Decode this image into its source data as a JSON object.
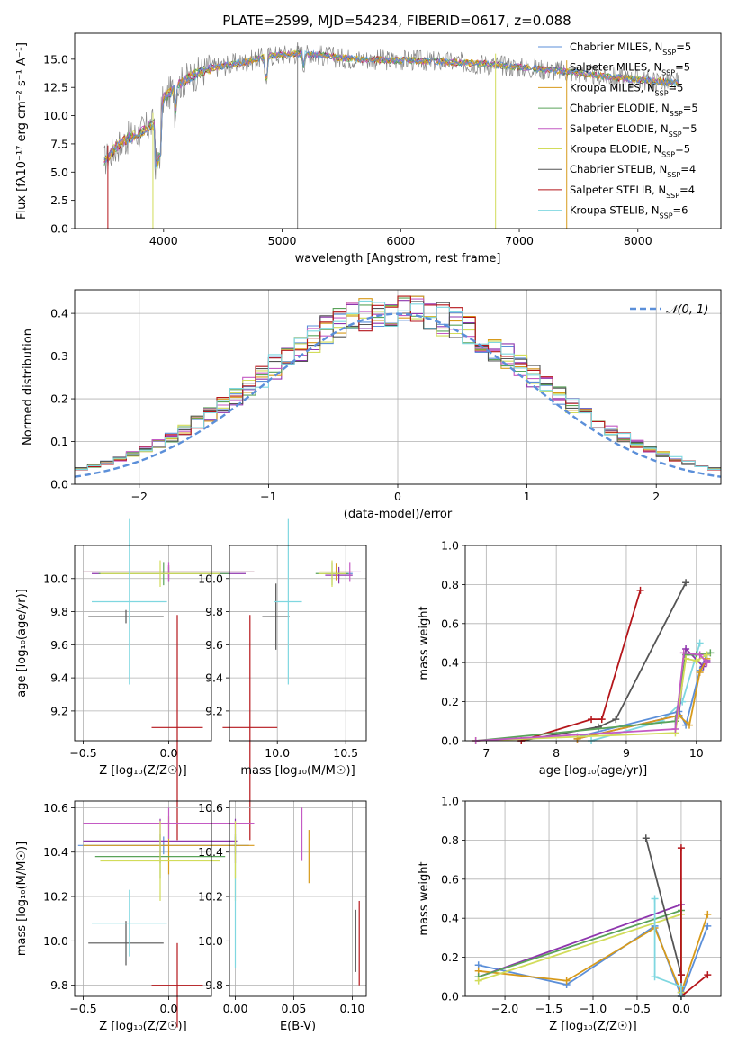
{
  "figure_title": "PLATE=2599, MJD=54234, FIBERID=0617, z=0.088",
  "colors": {
    "chabrier_miles": "#5b8fd9",
    "salpeter_miles": "#8e35ad",
    "kroupa_miles": "#d79a1b",
    "chabrier_elodie": "#5aa35a",
    "salpeter_elodie": "#c45ac4",
    "kroupa_elodie": "#d2dc5a",
    "chabrier_stelib": "#555555",
    "salpeter_stelib": "#b5161b",
    "kroupa_stelib": "#7fd7e0",
    "gaussian": "#5b8fd9",
    "data_spectrum": "#808080"
  },
  "chart_data": [
    {
      "id": "spectrum",
      "type": "line",
      "title": "PLATE=2599, MJD=54234, FIBERID=0617, z=0.088",
      "xlabel": "wavelength [Angstrom, rest frame]",
      "ylabel": "Flux [fλ10⁻¹⁷ erg cm⁻² s⁻¹ A⁻¹]",
      "xlim": [
        3250,
        8700
      ],
      "ylim": [
        0,
        17.3
      ],
      "xticks": [
        4000,
        5000,
        6000,
        7000,
        8000
      ],
      "yticks": [
        0.0,
        2.5,
        5.0,
        7.5,
        10.0,
        12.5,
        15.0
      ],
      "legend_position": "right",
      "legend": [
        {
          "label": "Chabrier MILES, N_SSP=5",
          "color_key": "chabrier_miles"
        },
        {
          "label": "Salpeter MILES, N_SSP=5",
          "color_key": "salpeter_miles"
        },
        {
          "label": "Kroupa MILES, N_SSP=5",
          "color_key": "kroupa_miles"
        },
        {
          "label": "Chabrier ELODIE, N_SSP=5",
          "color_key": "chabrier_elodie"
        },
        {
          "label": "Salpeter ELODIE, N_SSP=5",
          "color_key": "salpeter_elodie"
        },
        {
          "label": "Kroupa ELODIE, N_SSP=5",
          "color_key": "kroupa_elodie"
        },
        {
          "label": "Chabrier STELIB, N_SSP=4",
          "color_key": "chabrier_stelib"
        },
        {
          "label": "Salpeter STELIB, N_SSP=4",
          "color_key": "salpeter_stelib"
        },
        {
          "label": "Kroupa STELIB, N_SSP=6",
          "color_key": "kroupa_stelib"
        }
      ],
      "continuum": {
        "x": [
          3500,
          3600,
          3700,
          3800,
          3900,
          3950,
          4000,
          4100,
          4200,
          4300,
          4400,
          4500,
          4700,
          4900,
          5100,
          5300,
          5500,
          5700,
          5900,
          6100,
          6300,
          6500,
          6700,
          6900,
          7100,
          7300,
          7500,
          7700,
          7900,
          8100,
          8300
        ],
        "y": [
          6.0,
          7.2,
          8.0,
          8.5,
          9.2,
          9.3,
          11.5,
          12.5,
          13.3,
          13.8,
          14.2,
          14.4,
          14.8,
          15.3,
          15.5,
          15.4,
          15.1,
          15.0,
          14.9,
          14.9,
          14.8,
          14.7,
          14.6,
          14.4,
          14.2,
          14.0,
          13.8,
          13.5,
          13.3,
          13.1,
          12.9
        ]
      },
      "spikes_down": [
        {
          "x": 3530,
          "y": 0.0,
          "color_key": "salpeter_stelib"
        },
        {
          "x": 3910,
          "y": 0.0,
          "color_key": "kroupa_elodie"
        },
        {
          "x": 5130,
          "y": 0.0,
          "color_key": "data_spectrum"
        },
        {
          "x": 6800,
          "y": 0.0,
          "color_key": "kroupa_elodie"
        },
        {
          "x": 7400,
          "y": 0.0,
          "color_key": "kroupa_miles"
        }
      ]
    },
    {
      "id": "residuals",
      "type": "bar",
      "xlabel": "(data-model)/error",
      "ylabel": "Normed distribution",
      "xlim": [
        -2.5,
        2.5
      ],
      "ylim": [
        0,
        0.455
      ],
      "xticks": [
        -2,
        -1,
        0,
        1,
        2
      ],
      "yticks": [
        0.0,
        0.1,
        0.2,
        0.3,
        0.4
      ],
      "grid": true,
      "bin_width": 0.1,
      "legend_position": "top-right",
      "legend": [
        {
          "label": "𝒩(0, 1)",
          "color_key": "gaussian"
        }
      ],
      "gaussian": {
        "mean": 0,
        "sigma": 1,
        "style": "dashed"
      }
    },
    {
      "id": "age_vs_Z",
      "type": "scatter",
      "xlabel": "Z [log₁₀(Z/Z☉)]",
      "ylabel": "age  [log₁₀(age/yr)]",
      "xlim": [
        -0.55,
        0.25
      ],
      "ylim": [
        9.02,
        10.2
      ],
      "xticks": [
        -0.5,
        0.0
      ],
      "yticks": [
        9.2,
        9.4,
        9.6,
        9.8,
        10.0
      ],
      "grid": true,
      "points": [
        {
          "x": 0.0,
          "y": 10.04,
          "xerr": 0.5,
          "yerr": 0.03,
          "color_key": "chabrier_miles"
        },
        {
          "x": 0.0,
          "y": 10.03,
          "xerr": 0.45,
          "yerr": 0.05,
          "color_key": "salpeter_miles"
        },
        {
          "x": 0.0,
          "y": 10.04,
          "xerr": 0.5,
          "yerr": 0.04,
          "color_key": "kroupa_miles"
        },
        {
          "x": -0.03,
          "y": 10.03,
          "xerr": 0.38,
          "yerr": 0.07,
          "color_key": "chabrier_elodie"
        },
        {
          "x": 0.0,
          "y": 10.04,
          "xerr": 0.5,
          "yerr": 0.06,
          "color_key": "salpeter_elodie"
        },
        {
          "x": -0.05,
          "y": 10.03,
          "xerr": 0.35,
          "yerr": 0.08,
          "color_key": "kroupa_elodie"
        },
        {
          "x": -0.25,
          "y": 9.77,
          "xerr": 0.22,
          "yerr": 0.04,
          "color_key": "chabrier_stelib"
        },
        {
          "x": 0.05,
          "y": 9.1,
          "xerr": 0.15,
          "yerr": 0.68,
          "color_key": "salpeter_stelib"
        },
        {
          "x": -0.23,
          "y": 9.86,
          "xerr": 0.22,
          "yerr": 0.5,
          "color_key": "kroupa_stelib"
        }
      ]
    },
    {
      "id": "age_vs_mass",
      "type": "scatter",
      "xlabel": "mass [log₁₀(M/M☉)]",
      "ylabel": "",
      "xlim": [
        9.65,
        10.65
      ],
      "ylim": [
        9.02,
        10.2
      ],
      "xticks": [
        10.0,
        10.5
      ],
      "yticks": [
        9.2,
        9.4,
        9.6,
        9.8,
        10.0
      ],
      "grid": true,
      "points": [
        {
          "x": 10.45,
          "y": 10.03,
          "xerr": 0.1,
          "yerr": 0.03,
          "color_key": "chabrier_miles"
        },
        {
          "x": 10.45,
          "y": 10.02,
          "xerr": 0.1,
          "yerr": 0.05,
          "color_key": "salpeter_miles"
        },
        {
          "x": 10.43,
          "y": 10.04,
          "xerr": 0.12,
          "yerr": 0.05,
          "color_key": "kroupa_miles"
        },
        {
          "x": 10.4,
          "y": 10.03,
          "xerr": 0.12,
          "yerr": 0.07,
          "color_key": "chabrier_elodie"
        },
        {
          "x": 10.53,
          "y": 10.04,
          "xerr": 0.08,
          "yerr": 0.06,
          "color_key": "salpeter_elodie"
        },
        {
          "x": 10.4,
          "y": 10.03,
          "xerr": 0.1,
          "yerr": 0.08,
          "color_key": "kroupa_elodie"
        },
        {
          "x": 9.99,
          "y": 9.77,
          "xerr": 0.1,
          "yerr": 0.2,
          "color_key": "chabrier_stelib"
        },
        {
          "x": 9.8,
          "y": 9.1,
          "xerr": 0.2,
          "yerr": 0.68,
          "color_key": "salpeter_stelib"
        },
        {
          "x": 10.08,
          "y": 9.86,
          "xerr": 0.1,
          "yerr": 0.5,
          "color_key": "kroupa_stelib"
        }
      ]
    },
    {
      "id": "weight_vs_age",
      "type": "line",
      "xlabel": "age  [log₁₀(age/yr)]",
      "ylabel": "mass weight",
      "xlim": [
        6.7,
        10.35
      ],
      "ylim": [
        0,
        1.0
      ],
      "xticks": [
        7,
        8,
        9,
        10
      ],
      "yticks": [
        0.0,
        0.2,
        0.4,
        0.6,
        0.8,
        1.0
      ],
      "grid": true,
      "series": [
        {
          "color_key": "chabrier_stelib",
          "x": [
            7.5,
            8.6,
            8.85,
            9.85
          ],
          "y": [
            0.0,
            0.07,
            0.11,
            0.81
          ]
        },
        {
          "color_key": "salpeter_stelib",
          "x": [
            7.5,
            8.5,
            8.65,
            9.2
          ],
          "y": [
            0.0,
            0.11,
            0.11,
            0.77
          ]
        },
        {
          "color_key": "kroupa_stelib",
          "x": [
            8.5,
            9.5,
            9.8,
            10.05
          ],
          "y": [
            0.0,
            0.1,
            0.2,
            0.5
          ]
        },
        {
          "color_key": "chabrier_miles",
          "x": [
            8.3,
            9.75,
            9.85,
            10.05,
            10.15
          ],
          "y": [
            0.02,
            0.15,
            0.08,
            0.36,
            0.44
          ]
        },
        {
          "color_key": "salpeter_miles",
          "x": [
            8.3,
            9.75,
            9.85,
            10.1,
            10.15
          ],
          "y": [
            0.01,
            0.13,
            0.47,
            0.38,
            0.41
          ]
        },
        {
          "color_key": "kroupa_miles",
          "x": [
            8.3,
            9.75,
            9.9,
            10.05,
            10.15
          ],
          "y": [
            0.01,
            0.13,
            0.08,
            0.35,
            0.42
          ]
        },
        {
          "color_key": "chabrier_elodie",
          "x": [
            6.85,
            9.7,
            9.85,
            10.0,
            10.2
          ],
          "y": [
            0.0,
            0.1,
            0.44,
            0.44,
            0.45
          ]
        },
        {
          "color_key": "kroupa_elodie",
          "x": [
            6.85,
            9.7,
            9.85,
            10.0,
            10.15
          ],
          "y": [
            0.0,
            0.04,
            0.42,
            0.41,
            0.44
          ]
        },
        {
          "color_key": "salpeter_elodie",
          "x": [
            6.85,
            9.7,
            9.82,
            10.05,
            10.15
          ],
          "y": [
            0.0,
            0.06,
            0.45,
            0.44,
            0.4
          ]
        }
      ]
    },
    {
      "id": "mass_vs_Z",
      "type": "scatter",
      "xlabel": "Z [log₁₀(Z/Z☉)]",
      "ylabel": "mass [log₁₀(M/M☉)]",
      "xlim": [
        -0.55,
        0.25
      ],
      "ylim": [
        9.75,
        10.63
      ],
      "xticks": [
        -0.5,
        0.0
      ],
      "yticks": [
        9.8,
        10.0,
        10.2,
        10.4,
        10.6
      ],
      "grid": true,
      "points": [
        {
          "x": -0.03,
          "y": 10.43,
          "xerr": 0.5,
          "yerr": 0.04,
          "color_key": "chabrier_miles"
        },
        {
          "x": -0.05,
          "y": 10.45,
          "xerr": 0.45,
          "yerr": 0.1,
          "color_key": "salpeter_miles"
        },
        {
          "x": 0.0,
          "y": 10.43,
          "xerr": 0.5,
          "yerr": 0.13,
          "color_key": "kroupa_miles"
        },
        {
          "x": -0.05,
          "y": 10.38,
          "xerr": 0.38,
          "yerr": 0.1,
          "color_key": "chabrier_elodie"
        },
        {
          "x": 0.0,
          "y": 10.53,
          "xerr": 0.5,
          "yerr": 0.07,
          "color_key": "salpeter_elodie"
        },
        {
          "x": -0.05,
          "y": 10.36,
          "xerr": 0.35,
          "yerr": 0.18,
          "color_key": "kroupa_elodie"
        },
        {
          "x": -0.25,
          "y": 9.99,
          "xerr": 0.22,
          "yerr": 0.1,
          "color_key": "chabrier_stelib"
        },
        {
          "x": 0.05,
          "y": 9.8,
          "xerr": 0.15,
          "yerr": 0.19,
          "color_key": "salpeter_stelib"
        },
        {
          "x": -0.23,
          "y": 10.08,
          "xerr": 0.22,
          "yerr": 0.15,
          "color_key": "kroupa_stelib"
        }
      ]
    },
    {
      "id": "mass_vs_ebv",
      "type": "scatter",
      "xlabel": "E(B-V)",
      "ylabel": "",
      "xlim": [
        -0.005,
        0.112
      ],
      "ylim": [
        9.75,
        10.63
      ],
      "xticks": [
        0.0,
        0.05,
        0.1
      ],
      "yticks": [
        9.8,
        10.0,
        10.2,
        10.4,
        10.6
      ],
      "grid": true,
      "points": [
        {
          "x": 0.0,
          "y": 10.43,
          "xerr": 0,
          "yerr": 0.04,
          "color_key": "chabrier_miles"
        },
        {
          "x": 0.0,
          "y": 10.45,
          "xerr": 0,
          "yerr": 0.1,
          "color_key": "salpeter_miles"
        },
        {
          "x": 0.063,
          "y": 10.38,
          "xerr": 0,
          "yerr": 0.12,
          "color_key": "kroupa_miles"
        },
        {
          "x": 0.0,
          "y": 10.38,
          "xerr": 0,
          "yerr": 0.1,
          "color_key": "chabrier_elodie"
        },
        {
          "x": 0.057,
          "y": 10.48,
          "xerr": 0,
          "yerr": 0.12,
          "color_key": "salpeter_elodie"
        },
        {
          "x": 0.0,
          "y": 10.36,
          "xerr": 0,
          "yerr": 0.18,
          "color_key": "kroupa_elodie"
        },
        {
          "x": 0.103,
          "y": 10.0,
          "xerr": 0,
          "yerr": 0.14,
          "color_key": "chabrier_stelib"
        },
        {
          "x": 0.106,
          "y": 9.99,
          "xerr": 0,
          "yerr": 0.19,
          "color_key": "salpeter_stelib"
        },
        {
          "x": 0.0,
          "y": 10.08,
          "xerr": 0,
          "yerr": 0.2,
          "color_key": "kroupa_stelib"
        }
      ]
    },
    {
      "id": "weight_vs_Z",
      "type": "line",
      "xlabel": "Z [log₁₀(Z/Z☉)]",
      "ylabel": "mass weight",
      "xlim": [
        -2.45,
        0.45
      ],
      "ylim": [
        0,
        1.0
      ],
      "xticks": [
        -2.0,
        -1.5,
        -1.0,
        -0.5,
        0.0
      ],
      "yticks": [
        0.0,
        0.2,
        0.4,
        0.6,
        0.8,
        1.0
      ],
      "grid": true,
      "series": [
        {
          "color_key": "chabrier_miles",
          "x": [
            -2.3,
            -1.3,
            -0.3,
            0.0,
            0.3
          ],
          "y": [
            0.16,
            0.06,
            0.36,
            0.0,
            0.36
          ]
        },
        {
          "color_key": "salpeter_miles",
          "x": [
            -2.3,
            0.0,
            0.0
          ],
          "y": [
            0.1,
            0.47,
            0.02
          ]
        },
        {
          "color_key": "kroupa_miles",
          "x": [
            -2.3,
            -1.3,
            -0.3,
            0.0,
            0.3
          ],
          "y": [
            0.13,
            0.08,
            0.35,
            0.02,
            0.42
          ]
        },
        {
          "color_key": "chabrier_elodie",
          "x": [
            -2.3,
            0.0,
            0.0
          ],
          "y": [
            0.1,
            0.44,
            0.02
          ]
        },
        {
          "color_key": "kroupa_elodie",
          "x": [
            -2.3,
            0.0,
            0.0
          ],
          "y": [
            0.08,
            0.42,
            0.02
          ]
        },
        {
          "color_key": "chabrier_stelib",
          "x": [
            -0.4,
            0.0,
            0.0
          ],
          "y": [
            0.81,
            0.11,
            0.0
          ]
        },
        {
          "color_key": "salpeter_stelib",
          "x": [
            0.0,
            0.0,
            0.0,
            0.3
          ],
          "y": [
            0.76,
            0.11,
            0.0,
            0.11
          ]
        },
        {
          "color_key": "kroupa_stelib",
          "x": [
            -0.3,
            -0.3,
            0.0,
            0.0
          ],
          "y": [
            0.5,
            0.1,
            0.05,
            0.0
          ]
        }
      ]
    }
  ]
}
